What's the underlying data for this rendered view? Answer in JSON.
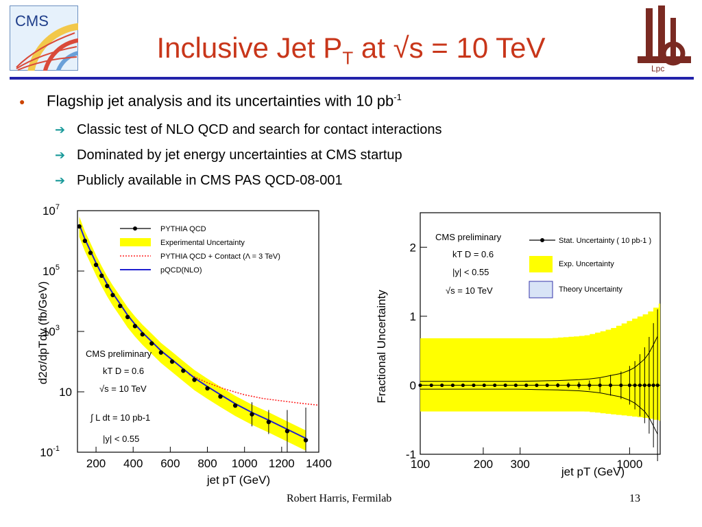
{
  "slide": {
    "title_main": "Inclusive Jet P",
    "title_sub": "T",
    "title_rest": " at √s = 10 TeV",
    "logos": [
      "CMS",
      "Lpc"
    ],
    "bullet1_text": "Flagship jet analysis and its uncertainties with 10 pb",
    "bullet1_sup": "-1",
    "sub_bullets": [
      "Classic test of NLO QCD and search for contact interactions",
      "Dominated by jet energy uncertainties at CMS startup",
      "Publicly available in CMS PAS QCD-08-001"
    ],
    "footer_author": "Robert Harris, Fermilab",
    "page_number": "13"
  },
  "chart_data": [
    {
      "type": "line",
      "log_y": true,
      "xlim": [
        100,
        1400
      ],
      "ylim": [
        0.1,
        10000000
      ],
      "x_ticks": [
        "200",
        "400",
        "600",
        "800",
        "1000",
        "1200",
        "1400"
      ],
      "y_ticks": [
        "10^-1",
        "10",
        "10^3",
        "10^5",
        "10^7"
      ],
      "xlabel": "jet pT (GeV)",
      "ylabel": "d2σ/dpTdy (fb/GeV)",
      "legend": [
        "PYTHIA QCD",
        "Experimental Uncertainty",
        "PYTHIA QCD + Contact (Λ = 3 TeV)",
        "pQCD(NLO)"
      ],
      "annotation": [
        "CMS preliminary",
        "kT D = 0.6",
        "√s = 10 TeV",
        "∫ L dt = 10 pb-1",
        "|y| < 0.55"
      ],
      "series": [
        {
          "name": "PYTHIA QCD",
          "x": [
            110,
            140,
            170,
            200,
            230,
            260,
            290,
            330,
            370,
            410,
            450,
            500,
            550,
            610,
            670,
            730,
            800,
            870,
            950,
            1040,
            1130,
            1230,
            1330
          ],
          "y": [
            3000000,
            1000000,
            400000,
            160000,
            70000,
            32000,
            16000,
            7000,
            3000,
            1500,
            800,
            400,
            200,
            100,
            50,
            25,
            13,
            7,
            3.5,
            1.8,
            1,
            0.5,
            0.25
          ]
        },
        {
          "name": "PYTHIA QCD + Contact (Λ = 3 TeV)",
          "x": [
            700,
            800,
            900,
            1000,
            1100,
            1200,
            1300,
            1400
          ],
          "y": [
            38,
            20,
            12,
            8,
            6,
            5,
            4.2,
            3.6
          ]
        }
      ],
      "colors": {
        "band": "#ffff00",
        "nlo": "#1f1fd0",
        "contact": "#ff2020",
        "points": "#000000"
      }
    },
    {
      "type": "scatter",
      "log_x": true,
      "xlim": [
        100,
        1400
      ],
      "ylim": [
        -1,
        2.5
      ],
      "x_ticks": [
        "100",
        "200",
        "300",
        "1000"
      ],
      "y_ticks": [
        "-1",
        "0",
        "1",
        "2"
      ],
      "xlabel": "jet pT (GeV)",
      "ylabel": "Fractional Uncertainty",
      "legend": [
        "Stat. Uncertainty ( 10 pb-1 )",
        "Exp. Uncertainty",
        "Theory Uncertainty"
      ],
      "annotation": [
        "CMS preliminary",
        "kT D = 0.6",
        "|y| < 0.55",
        "√s = 10 TeV"
      ],
      "band": {
        "x": [
          100,
          400,
          600,
          800,
          1000,
          1200,
          1400
        ],
        "upper": [
          0.68,
          0.68,
          0.72,
          0.82,
          0.95,
          1.05,
          1.2
        ],
        "lower": [
          -0.38,
          -0.38,
          -0.38,
          -0.42,
          -0.45,
          -0.48,
          -0.52
        ]
      },
      "stat_errors": {
        "x": [
          100,
          113,
          127,
          143,
          160,
          180,
          202,
          227,
          255,
          286,
          321,
          360,
          404,
          454,
          510,
          573,
          643,
          722,
          811,
          910,
          1000,
          1060,
          1120,
          1180,
          1240,
          1300,
          1360
        ],
        "err": [
          0.01,
          0.01,
          0.01,
          0.01,
          0.01,
          0.01,
          0.01,
          0.01,
          0.01,
          0.01,
          0.015,
          0.02,
          0.025,
          0.03,
          0.04,
          0.05,
          0.07,
          0.1,
          0.15,
          0.2,
          0.28,
          0.35,
          0.45,
          0.55,
          0.7,
          0.9,
          1.1
        ]
      },
      "colors": {
        "band": "#ffff00",
        "points": "#000000",
        "theory": "#3333aa"
      }
    }
  ]
}
